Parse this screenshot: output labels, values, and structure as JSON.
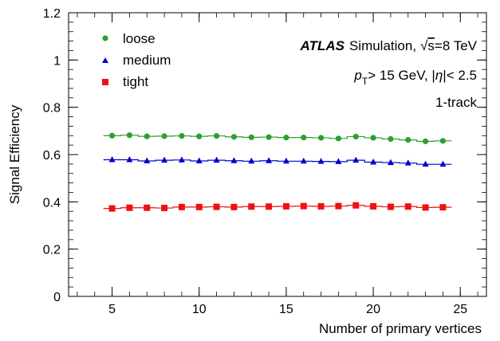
{
  "chart_data": {
    "type": "scatter",
    "title": "",
    "xlabel": "Number of primary vertices",
    "ylabel": "Signal Efficiency",
    "xlim": [
      2.5,
      26.5
    ],
    "ylim": [
      0,
      1.2
    ],
    "x_ticks": [
      5,
      10,
      15,
      20,
      25
    ],
    "y_ticks": [
      0,
      0.2,
      0.4,
      0.6,
      0.8,
      1,
      1.2
    ],
    "x_tick_labels": [
      "5",
      "10",
      "15",
      "20",
      "25"
    ],
    "y_tick_labels": [
      "0",
      "0.2",
      "0.4",
      "0.6",
      "0.8",
      "1",
      "1.2"
    ],
    "grid": false,
    "legend_position": "top-left",
    "x": [
      5,
      6,
      7,
      8,
      9,
      10,
      11,
      12,
      13,
      14,
      15,
      16,
      17,
      18,
      19,
      20,
      21,
      22,
      23,
      24
    ],
    "series": [
      {
        "name": "loose",
        "color": "#2ca02c",
        "marker": "circle",
        "values": [
          0.68,
          0.682,
          0.677,
          0.678,
          0.679,
          0.677,
          0.679,
          0.675,
          0.673,
          0.674,
          0.672,
          0.672,
          0.671,
          0.668,
          0.676,
          0.671,
          0.666,
          0.662,
          0.656,
          0.658
        ]
      },
      {
        "name": "medium",
        "color": "#0000cc",
        "marker": "triangle",
        "values": [
          0.578,
          0.578,
          0.573,
          0.576,
          0.577,
          0.573,
          0.576,
          0.574,
          0.572,
          0.574,
          0.572,
          0.572,
          0.571,
          0.57,
          0.576,
          0.568,
          0.566,
          0.564,
          0.559,
          0.559
        ]
      },
      {
        "name": "tight",
        "color": "#ee1111",
        "marker": "square",
        "values": [
          0.372,
          0.375,
          0.375,
          0.374,
          0.378,
          0.378,
          0.379,
          0.378,
          0.38,
          0.38,
          0.381,
          0.382,
          0.381,
          0.382,
          0.385,
          0.381,
          0.379,
          0.38,
          0.376,
          0.377
        ]
      }
    ],
    "annotations": {
      "atlas": "ATLAS",
      "simulation_prefix": "Simulation,",
      "sqrt_s": "s",
      "energy": "=8 TeV",
      "pt_p": "p",
      "pt_sub": "T",
      "pt_cut": "> 15 GeV, |",
      "eta": "η",
      "eta_cut": "|< 2.5",
      "track": "1-track"
    }
  }
}
